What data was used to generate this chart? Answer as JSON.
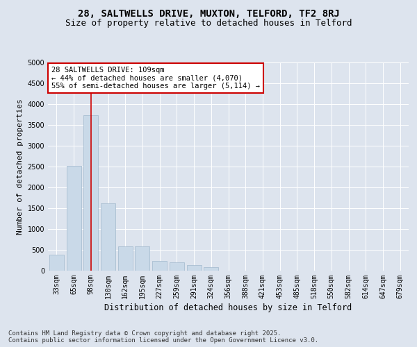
{
  "title_line1": "28, SALTWELLS DRIVE, MUXTON, TELFORD, TF2 8RJ",
  "title_line2": "Size of property relative to detached houses in Telford",
  "xlabel": "Distribution of detached houses by size in Telford",
  "ylabel": "Number of detached properties",
  "categories": [
    "33sqm",
    "65sqm",
    "98sqm",
    "130sqm",
    "162sqm",
    "195sqm",
    "227sqm",
    "259sqm",
    "291sqm",
    "324sqm",
    "356sqm",
    "388sqm",
    "421sqm",
    "453sqm",
    "485sqm",
    "518sqm",
    "550sqm",
    "582sqm",
    "614sqm",
    "647sqm",
    "679sqm"
  ],
  "values": [
    380,
    2520,
    3730,
    1620,
    590,
    590,
    230,
    200,
    130,
    80,
    0,
    0,
    0,
    0,
    0,
    0,
    0,
    0,
    0,
    0,
    0
  ],
  "bar_color": "#c9d9e8",
  "bar_edge_color": "#a0b8cc",
  "vline_x_index": 2,
  "vline_color": "#cc0000",
  "annotation_text": "28 SALTWELLS DRIVE: 109sqm\n← 44% of detached houses are smaller (4,070)\n55% of semi-detached houses are larger (5,114) →",
  "annotation_box_color": "#ffffff",
  "annotation_box_edgecolor": "#cc0000",
  "ylim": [
    0,
    5000
  ],
  "yticks": [
    0,
    500,
    1000,
    1500,
    2000,
    2500,
    3000,
    3500,
    4000,
    4500,
    5000
  ],
  "background_color": "#dde4ee",
  "plot_bg_color": "#dde4ee",
  "footer_text": "Contains HM Land Registry data © Crown copyright and database right 2025.\nContains public sector information licensed under the Open Government Licence v3.0.",
  "title_fontsize": 10,
  "subtitle_fontsize": 9,
  "tick_fontsize": 7,
  "ylabel_fontsize": 8,
  "xlabel_fontsize": 8.5,
  "annotation_fontsize": 7.5,
  "footer_fontsize": 6.5
}
